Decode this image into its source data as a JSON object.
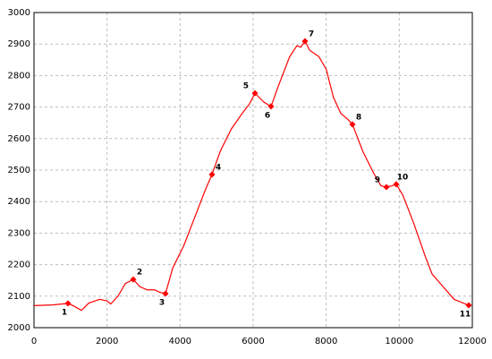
{
  "chart_data": {
    "type": "line",
    "x": [
      0,
      500,
      930,
      1100,
      1300,
      1500,
      1800,
      2000,
      2100,
      2300,
      2500,
      2718,
      2900,
      3100,
      3300,
      3450,
      3600,
      3800,
      4100,
      4400,
      4700,
      4873,
      5100,
      5400,
      5700,
      5900,
      6049,
      6300,
      6490,
      6700,
      7000,
      7200,
      7300,
      7420,
      7550,
      7800,
      8000,
      8200,
      8400,
      8600,
      8718,
      9000,
      9300,
      9500,
      9649,
      9800,
      9918,
      10100,
      10400,
      10700,
      10900,
      11200,
      11500,
      11902
    ],
    "series": [
      {
        "color": "#ff0000",
        "values": [
          2070,
          2072,
          2077,
          2068,
          2055,
          2078,
          2090,
          2085,
          2075,
          2100,
          2140,
          2153,
          2130,
          2120,
          2120,
          2112,
          2108,
          2190,
          2260,
          2350,
          2440,
          2486,
          2560,
          2630,
          2680,
          2710,
          2744,
          2715,
          2702,
          2770,
          2860,
          2895,
          2890,
          2909,
          2880,
          2860,
          2820,
          2730,
          2680,
          2660,
          2645,
          2560,
          2490,
          2450,
          2446,
          2450,
          2455,
          2420,
          2330,
          2230,
          2170,
          2130,
          2090,
          2071
        ]
      }
    ],
    "points": [
      {
        "label": "1",
        "x": 930,
        "y": 2077
      },
      {
        "label": "2",
        "x": 2718,
        "y": 2153
      },
      {
        "label": "3",
        "x": 3600,
        "y": 2108
      },
      {
        "label": "4",
        "x": 4873,
        "y": 2486
      },
      {
        "label": "5",
        "x": 6049,
        "y": 2744
      },
      {
        "label": "6",
        "x": 6490,
        "y": 2702
      },
      {
        "label": "7",
        "x": 7420,
        "y": 2909
      },
      {
        "label": "8",
        "x": 8718,
        "y": 2645
      },
      {
        "label": "9",
        "x": 9649,
        "y": 2446
      },
      {
        "label": "10",
        "x": 9918,
        "y": 2455
      },
      {
        "label": "11",
        "x": 11902,
        "y": 2071
      }
    ],
    "point_color": "#ff0000",
    "xlim": [
      0,
      12000
    ],
    "xticks": [
      0,
      2000,
      4000,
      6000,
      8000,
      10000,
      12000
    ],
    "ylim": [
      2000,
      3000
    ],
    "yticks": [
      2000,
      2100,
      2200,
      2300,
      2400,
      2500,
      2600,
      2700,
      2800,
      2900,
      3000
    ],
    "grid": true
  }
}
